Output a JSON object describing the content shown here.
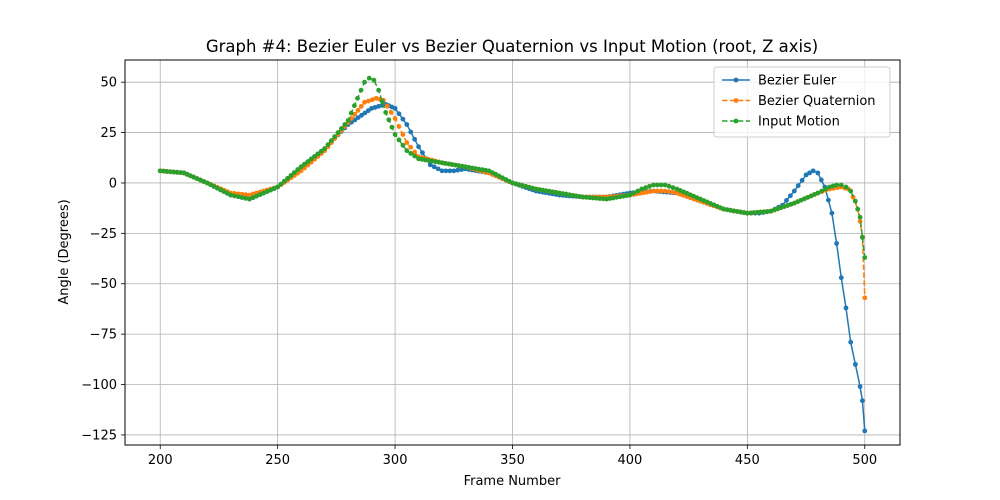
{
  "chart_data": {
    "type": "line",
    "title": "Graph #4: Bezier Euler vs Bezier Quaternion vs Input Motion (root, Z axis)",
    "xlabel": "Frame Number",
    "ylabel": "Angle (Degrees)",
    "xlim": [
      185,
      515
    ],
    "ylim": [
      -130,
      61
    ],
    "xticks": [
      200,
      250,
      300,
      350,
      400,
      450,
      500
    ],
    "yticks": [
      50,
      25,
      0,
      -25,
      -50,
      -75,
      -100,
      -125
    ],
    "grid": true,
    "legend_position": "top-right",
    "series": [
      {
        "name": "Bezier Euler",
        "color": "#1f77b4",
        "line_style": "solid",
        "marker": "dot",
        "x": [
          200,
          210,
          220,
          230,
          238,
          250,
          260,
          270,
          280,
          290,
          296,
          300,
          305,
          310,
          315,
          320,
          325,
          330,
          340,
          350,
          360,
          370,
          380,
          390,
          400,
          410,
          420,
          430,
          440,
          450,
          455,
          460,
          465,
          470,
          475,
          478,
          480,
          483,
          486,
          488,
          490,
          492,
          494,
          496,
          498,
          499,
          500
        ],
        "y": [
          6,
          5,
          0,
          -6,
          -8,
          -2,
          8,
          17,
          29,
          37,
          39,
          37,
          29,
          18,
          9,
          6,
          6,
          7,
          5,
          0,
          -4,
          -6,
          -7,
          -7,
          -5,
          -4,
          -5,
          -9,
          -13,
          -15,
          -15,
          -14,
          -11,
          -4,
          4,
          6,
          5,
          -2,
          -15,
          -30,
          -47,
          -62,
          -79,
          -90,
          -101,
          -108,
          -123
        ]
      },
      {
        "name": "Bezier Quaternion",
        "color": "#ff7f0e",
        "line_style": "dashed",
        "marker": "dot",
        "x": [
          200,
          210,
          220,
          230,
          238,
          250,
          260,
          270,
          280,
          287,
          292,
          295,
          300,
          305,
          310,
          320,
          330,
          340,
          350,
          360,
          370,
          380,
          390,
          400,
          410,
          415,
          420,
          430,
          440,
          450,
          460,
          470,
          480,
          485,
          490,
          493,
          495,
          497,
          498,
          499,
          500
        ],
        "y": [
          6,
          5,
          0,
          -5,
          -6,
          -2,
          6,
          16,
          30,
          40,
          42,
          41,
          32,
          20,
          13,
          10,
          8,
          5,
          0,
          -3,
          -5,
          -7,
          -7,
          -6,
          -4,
          -4,
          -5,
          -9,
          -13,
          -15,
          -14,
          -10,
          -5,
          -3,
          -2,
          -3,
          -7,
          -13,
          -19,
          -27,
          -57
        ]
      },
      {
        "name": "Input Motion",
        "color": "#2ca02c",
        "line_style": "dashed",
        "marker": "dot",
        "x": [
          200,
          210,
          220,
          230,
          238,
          250,
          260,
          270,
          280,
          284,
          287,
          289,
          291,
          293,
          296,
          300,
          305,
          310,
          320,
          330,
          340,
          350,
          360,
          370,
          380,
          390,
          400,
          405,
          410,
          415,
          420,
          430,
          440,
          450,
          460,
          470,
          480,
          485,
          488,
          490,
          492,
          494,
          496,
          497,
          498,
          499,
          500
        ],
        "y": [
          6,
          5,
          0,
          -6,
          -8,
          -2,
          8,
          17,
          31,
          42,
          50,
          52,
          51,
          46,
          35,
          24,
          16,
          12,
          10,
          8,
          6,
          0,
          -3,
          -5,
          -7,
          -8,
          -6,
          -3,
          -1,
          -1,
          -3,
          -8,
          -13,
          -15,
          -14,
          -10,
          -5,
          -2,
          -1,
          -1,
          -2,
          -4,
          -9,
          -13,
          -17,
          -27,
          -37
        ]
      }
    ]
  }
}
